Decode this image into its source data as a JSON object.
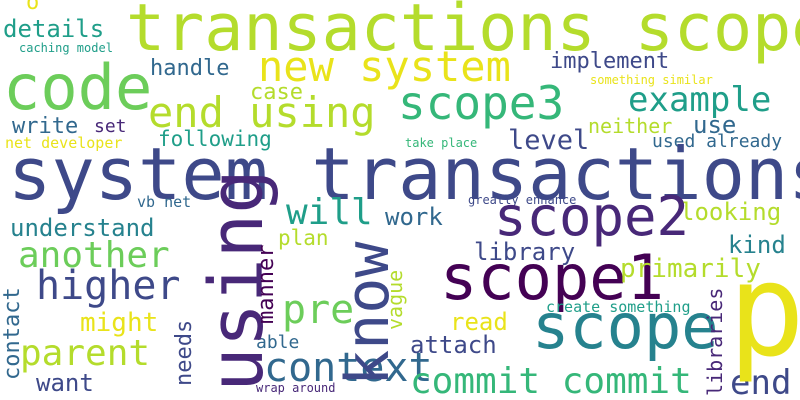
{
  "colors": {
    "background": "#ffffff",
    "yellow": "#e9e31a",
    "lime": "#b4dc2c",
    "green": "#6ccd5a",
    "sea": "#35b779",
    "teal": "#1f9e89",
    "cyan": "#26828e",
    "blue": "#31688e",
    "indigo": "#3e4989",
    "violet": "#482878",
    "purple": "#440154"
  },
  "words": {
    "o": "o",
    "transactions_scope": "transactions scope",
    "details": "details",
    "caching_model": "caching model",
    "code": "code",
    "new_system": "new system",
    "handle": "handle",
    "implement": "implement",
    "something_similar": "something similar",
    "end_using": "end using",
    "scope3": "scope3",
    "example": "example",
    "case": "case",
    "write": "write",
    "set": "set",
    "neither": "neither",
    "use": "use",
    "net_developer": "net developer",
    "following": "following",
    "level": "level",
    "take_place": "take place",
    "used_already": "used already",
    "system_transactions": "system transactions",
    "vb_net": "vb net",
    "will": "will",
    "greatly_enhance": "greatly enhance",
    "looking": "looking",
    "work": "work",
    "scope2": "scope2",
    "understand": "understand",
    "plan": "plan",
    "kind": "kind",
    "another": "another",
    "library": "library",
    "using": "using",
    "know": "know",
    "p": "p",
    "scope1": "scope1",
    "primarily": "primarily",
    "higher": "higher",
    "manner": "manner",
    "pre": "pre",
    "contact": "contact",
    "might": "might",
    "vague": "vague",
    "libraries": "libraries",
    "create_something": "create something",
    "read": "read",
    "scope": "scope",
    "needs": "needs",
    "parent": "parent",
    "able": "able",
    "context": "context",
    "attach": "attach",
    "want": "want",
    "commit_commit": "commit commit",
    "end": "end",
    "wrap_around": "wrap around"
  }
}
